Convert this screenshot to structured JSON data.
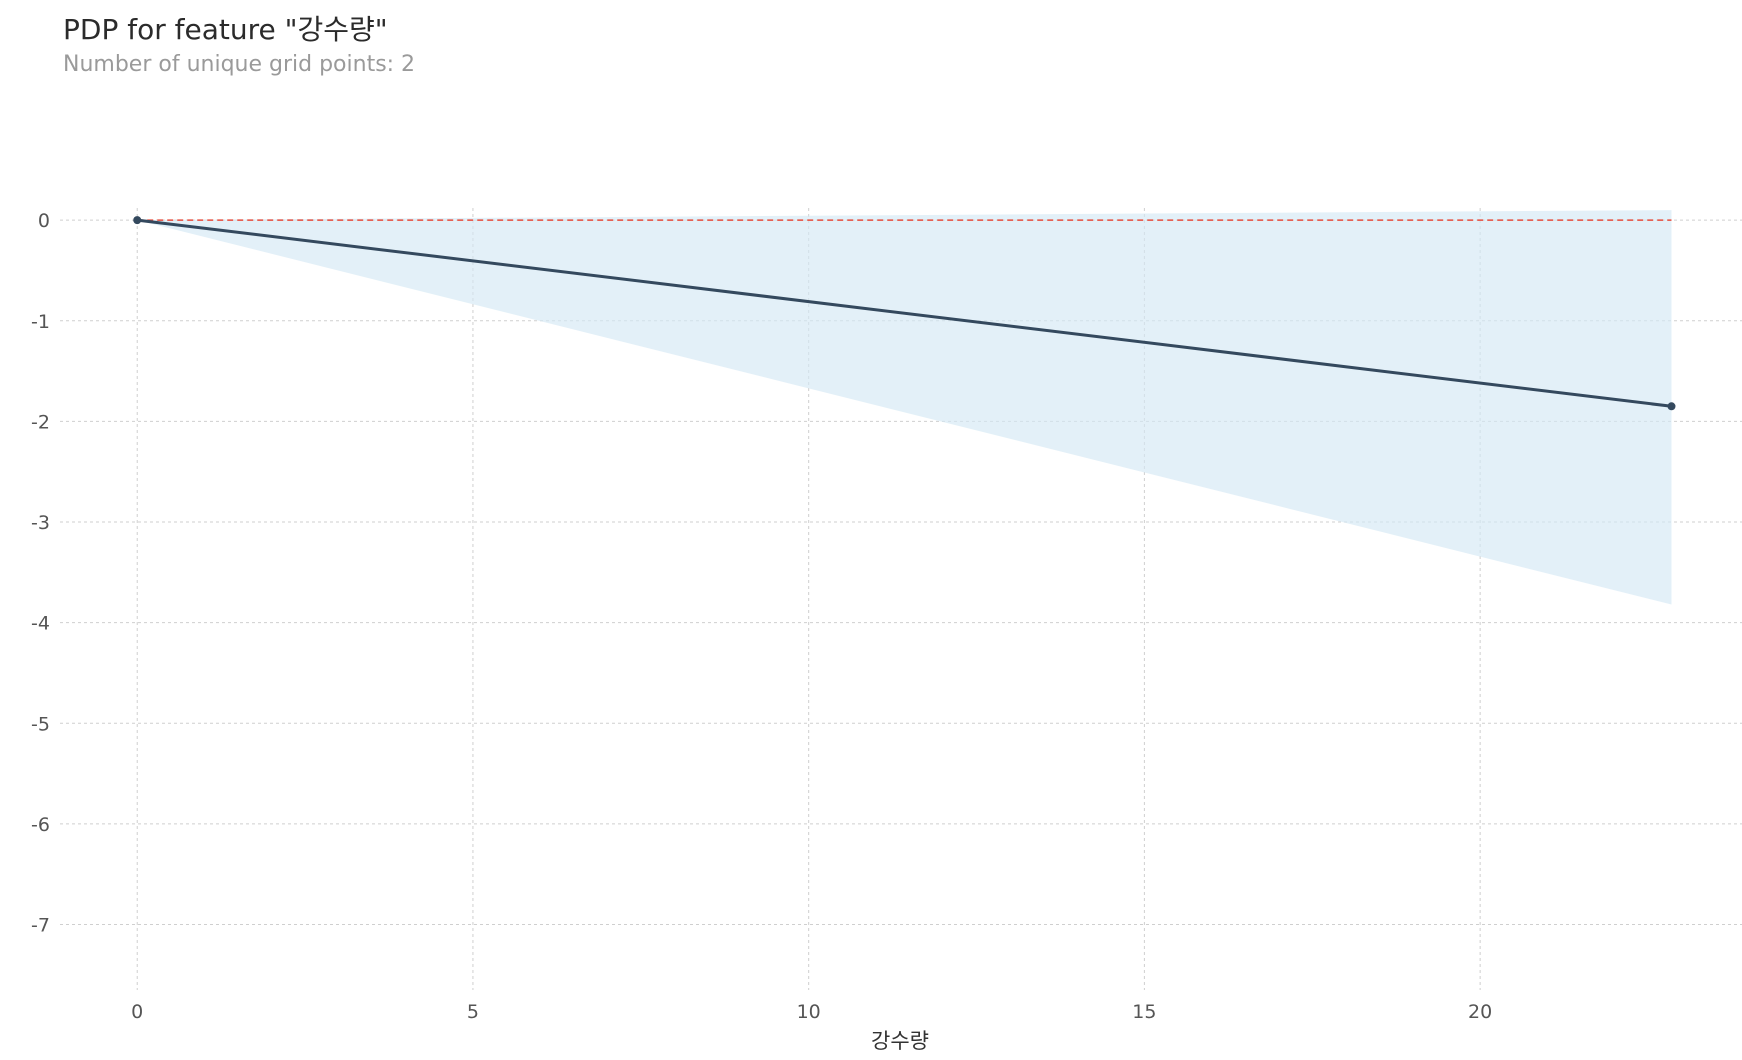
{
  "chart_data": {
    "type": "line",
    "title": "PDP for feature \"강수량\"",
    "subtitle": "Number of unique grid points: 2",
    "xlabel": "강수량",
    "ylabel": "",
    "xlim": [
      -1.15,
      23.9
    ],
    "ylim": [
      -7.75,
      0.2
    ],
    "xticks": [
      0,
      5,
      10,
      15,
      20
    ],
    "yticks": [
      0,
      -1,
      -2,
      -3,
      -4,
      -5,
      -6,
      -7
    ],
    "grid": true,
    "series": [
      {
        "kind": "pdp-line",
        "x": [
          0,
          22.85
        ],
        "y": [
          0,
          -1.85
        ],
        "color": "#34495e"
      },
      {
        "kind": "confidence-band",
        "x": [
          0,
          22.85
        ],
        "upper": [
          0,
          0.1
        ],
        "lower": [
          0,
          -3.82
        ],
        "color": "#d4e8f4"
      },
      {
        "kind": "baseline",
        "y": 0,
        "color": "#e74c3c"
      }
    ]
  }
}
